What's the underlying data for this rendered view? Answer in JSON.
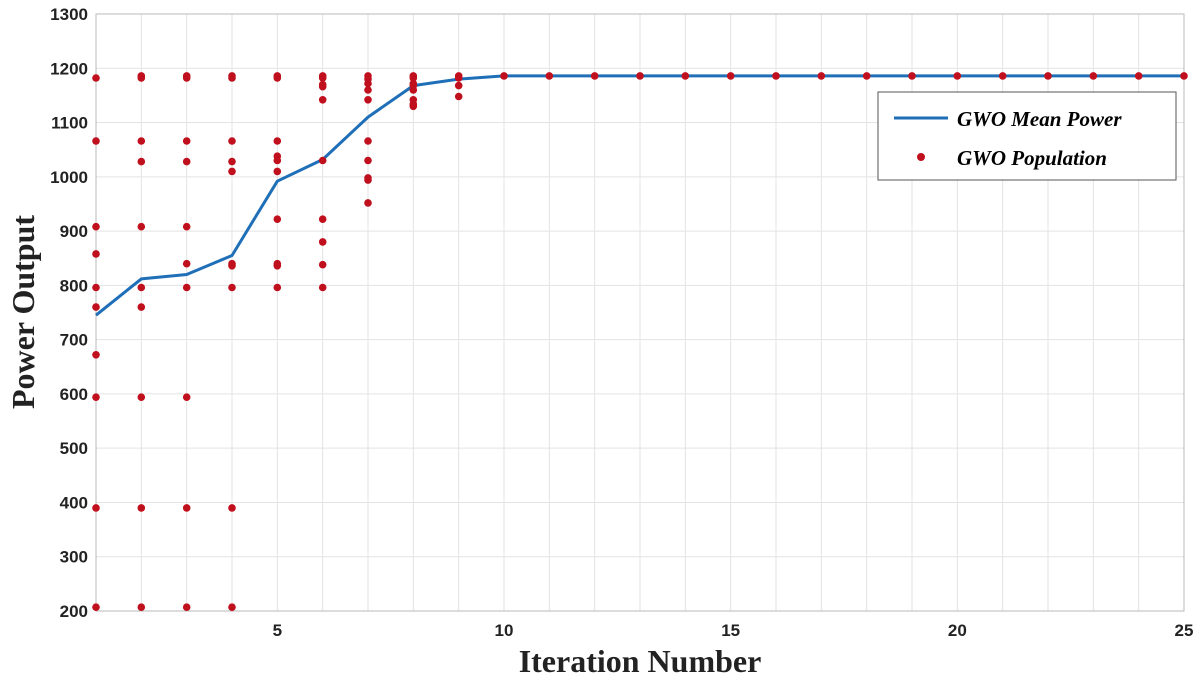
{
  "chart_data": {
    "type": "line",
    "xlabel": "Iteration Number",
    "ylabel": "Power Output",
    "xlim": [
      1,
      25
    ],
    "ylim": [
      200,
      1300
    ],
    "xticks": [
      5,
      10,
      15,
      20,
      25
    ],
    "yticks": [
      200,
      300,
      400,
      500,
      600,
      700,
      800,
      900,
      1000,
      1100,
      1200,
      1300
    ],
    "grid": true,
    "legend_position": "top-right",
    "colors": {
      "mean_line": "#1f6fb8",
      "population": "#c0101e"
    },
    "series": [
      {
        "name": "GWO Mean Power",
        "kind": "line",
        "x": [
          1,
          2,
          3,
          4,
          5,
          6,
          7,
          8,
          9,
          10,
          11,
          12,
          13,
          14,
          15,
          16,
          17,
          18,
          19,
          20,
          21,
          22,
          23,
          24,
          25
        ],
        "y": [
          745,
          812,
          820,
          855,
          992,
          1032,
          1110,
          1168,
          1180,
          1186,
          1186,
          1186,
          1186,
          1186,
          1186,
          1186,
          1186,
          1186,
          1186,
          1186,
          1186,
          1186,
          1186,
          1186,
          1186
        ]
      },
      {
        "name": "GWO Population",
        "kind": "scatter",
        "points": [
          [
            1,
            1182
          ],
          [
            1,
            1066
          ],
          [
            1,
            908
          ],
          [
            1,
            858
          ],
          [
            1,
            796
          ],
          [
            1,
            760
          ],
          [
            1,
            672
          ],
          [
            1,
            594
          ],
          [
            1,
            390
          ],
          [
            1,
            207
          ],
          [
            2,
            1186
          ],
          [
            2,
            1182
          ],
          [
            2,
            1066
          ],
          [
            2,
            1028
          ],
          [
            2,
            908
          ],
          [
            2,
            796
          ],
          [
            2,
            760
          ],
          [
            2,
            594
          ],
          [
            2,
            390
          ],
          [
            2,
            207
          ],
          [
            3,
            1186
          ],
          [
            3,
            1182
          ],
          [
            3,
            1066
          ],
          [
            3,
            1028
          ],
          [
            3,
            908
          ],
          [
            3,
            840
          ],
          [
            3,
            796
          ],
          [
            3,
            594
          ],
          [
            3,
            390
          ],
          [
            3,
            207
          ],
          [
            4,
            1186
          ],
          [
            4,
            1182
          ],
          [
            4,
            1066
          ],
          [
            4,
            1028
          ],
          [
            4,
            1010
          ],
          [
            4,
            840
          ],
          [
            4,
            836
          ],
          [
            4,
            796
          ],
          [
            4,
            390
          ],
          [
            4,
            207
          ],
          [
            5,
            1186
          ],
          [
            5,
            1182
          ],
          [
            5,
            1066
          ],
          [
            5,
            1038
          ],
          [
            5,
            1030
          ],
          [
            5,
            1010
          ],
          [
            5,
            922
          ],
          [
            5,
            840
          ],
          [
            5,
            836
          ],
          [
            5,
            796
          ],
          [
            6,
            1186
          ],
          [
            6,
            1182
          ],
          [
            6,
            1170
          ],
          [
            6,
            1166
          ],
          [
            6,
            1142
          ],
          [
            6,
            1030
          ],
          [
            6,
            922
          ],
          [
            6,
            880
          ],
          [
            6,
            838
          ],
          [
            6,
            796
          ],
          [
            7,
            1186
          ],
          [
            7,
            1180
          ],
          [
            7,
            1172
          ],
          [
            7,
            1160
          ],
          [
            7,
            1142
          ],
          [
            7,
            1066
          ],
          [
            7,
            1030
          ],
          [
            7,
            998
          ],
          [
            7,
            994
          ],
          [
            7,
            952
          ],
          [
            8,
            1186
          ],
          [
            8,
            1182
          ],
          [
            8,
            1172
          ],
          [
            8,
            1168
          ],
          [
            8,
            1160
          ],
          [
            8,
            1142
          ],
          [
            8,
            1134
          ],
          [
            8,
            1130
          ],
          [
            9,
            1186
          ],
          [
            9,
            1182
          ],
          [
            9,
            1168
          ],
          [
            9,
            1148
          ],
          [
            10,
            1186
          ],
          [
            11,
            1186
          ],
          [
            12,
            1186
          ],
          [
            13,
            1186
          ],
          [
            14,
            1186
          ],
          [
            15,
            1186
          ],
          [
            16,
            1186
          ],
          [
            17,
            1186
          ],
          [
            18,
            1186
          ],
          [
            19,
            1186
          ],
          [
            20,
            1186
          ],
          [
            21,
            1186
          ],
          [
            22,
            1186
          ],
          [
            23,
            1186
          ],
          [
            24,
            1186
          ],
          [
            25,
            1186
          ]
        ]
      }
    ]
  }
}
